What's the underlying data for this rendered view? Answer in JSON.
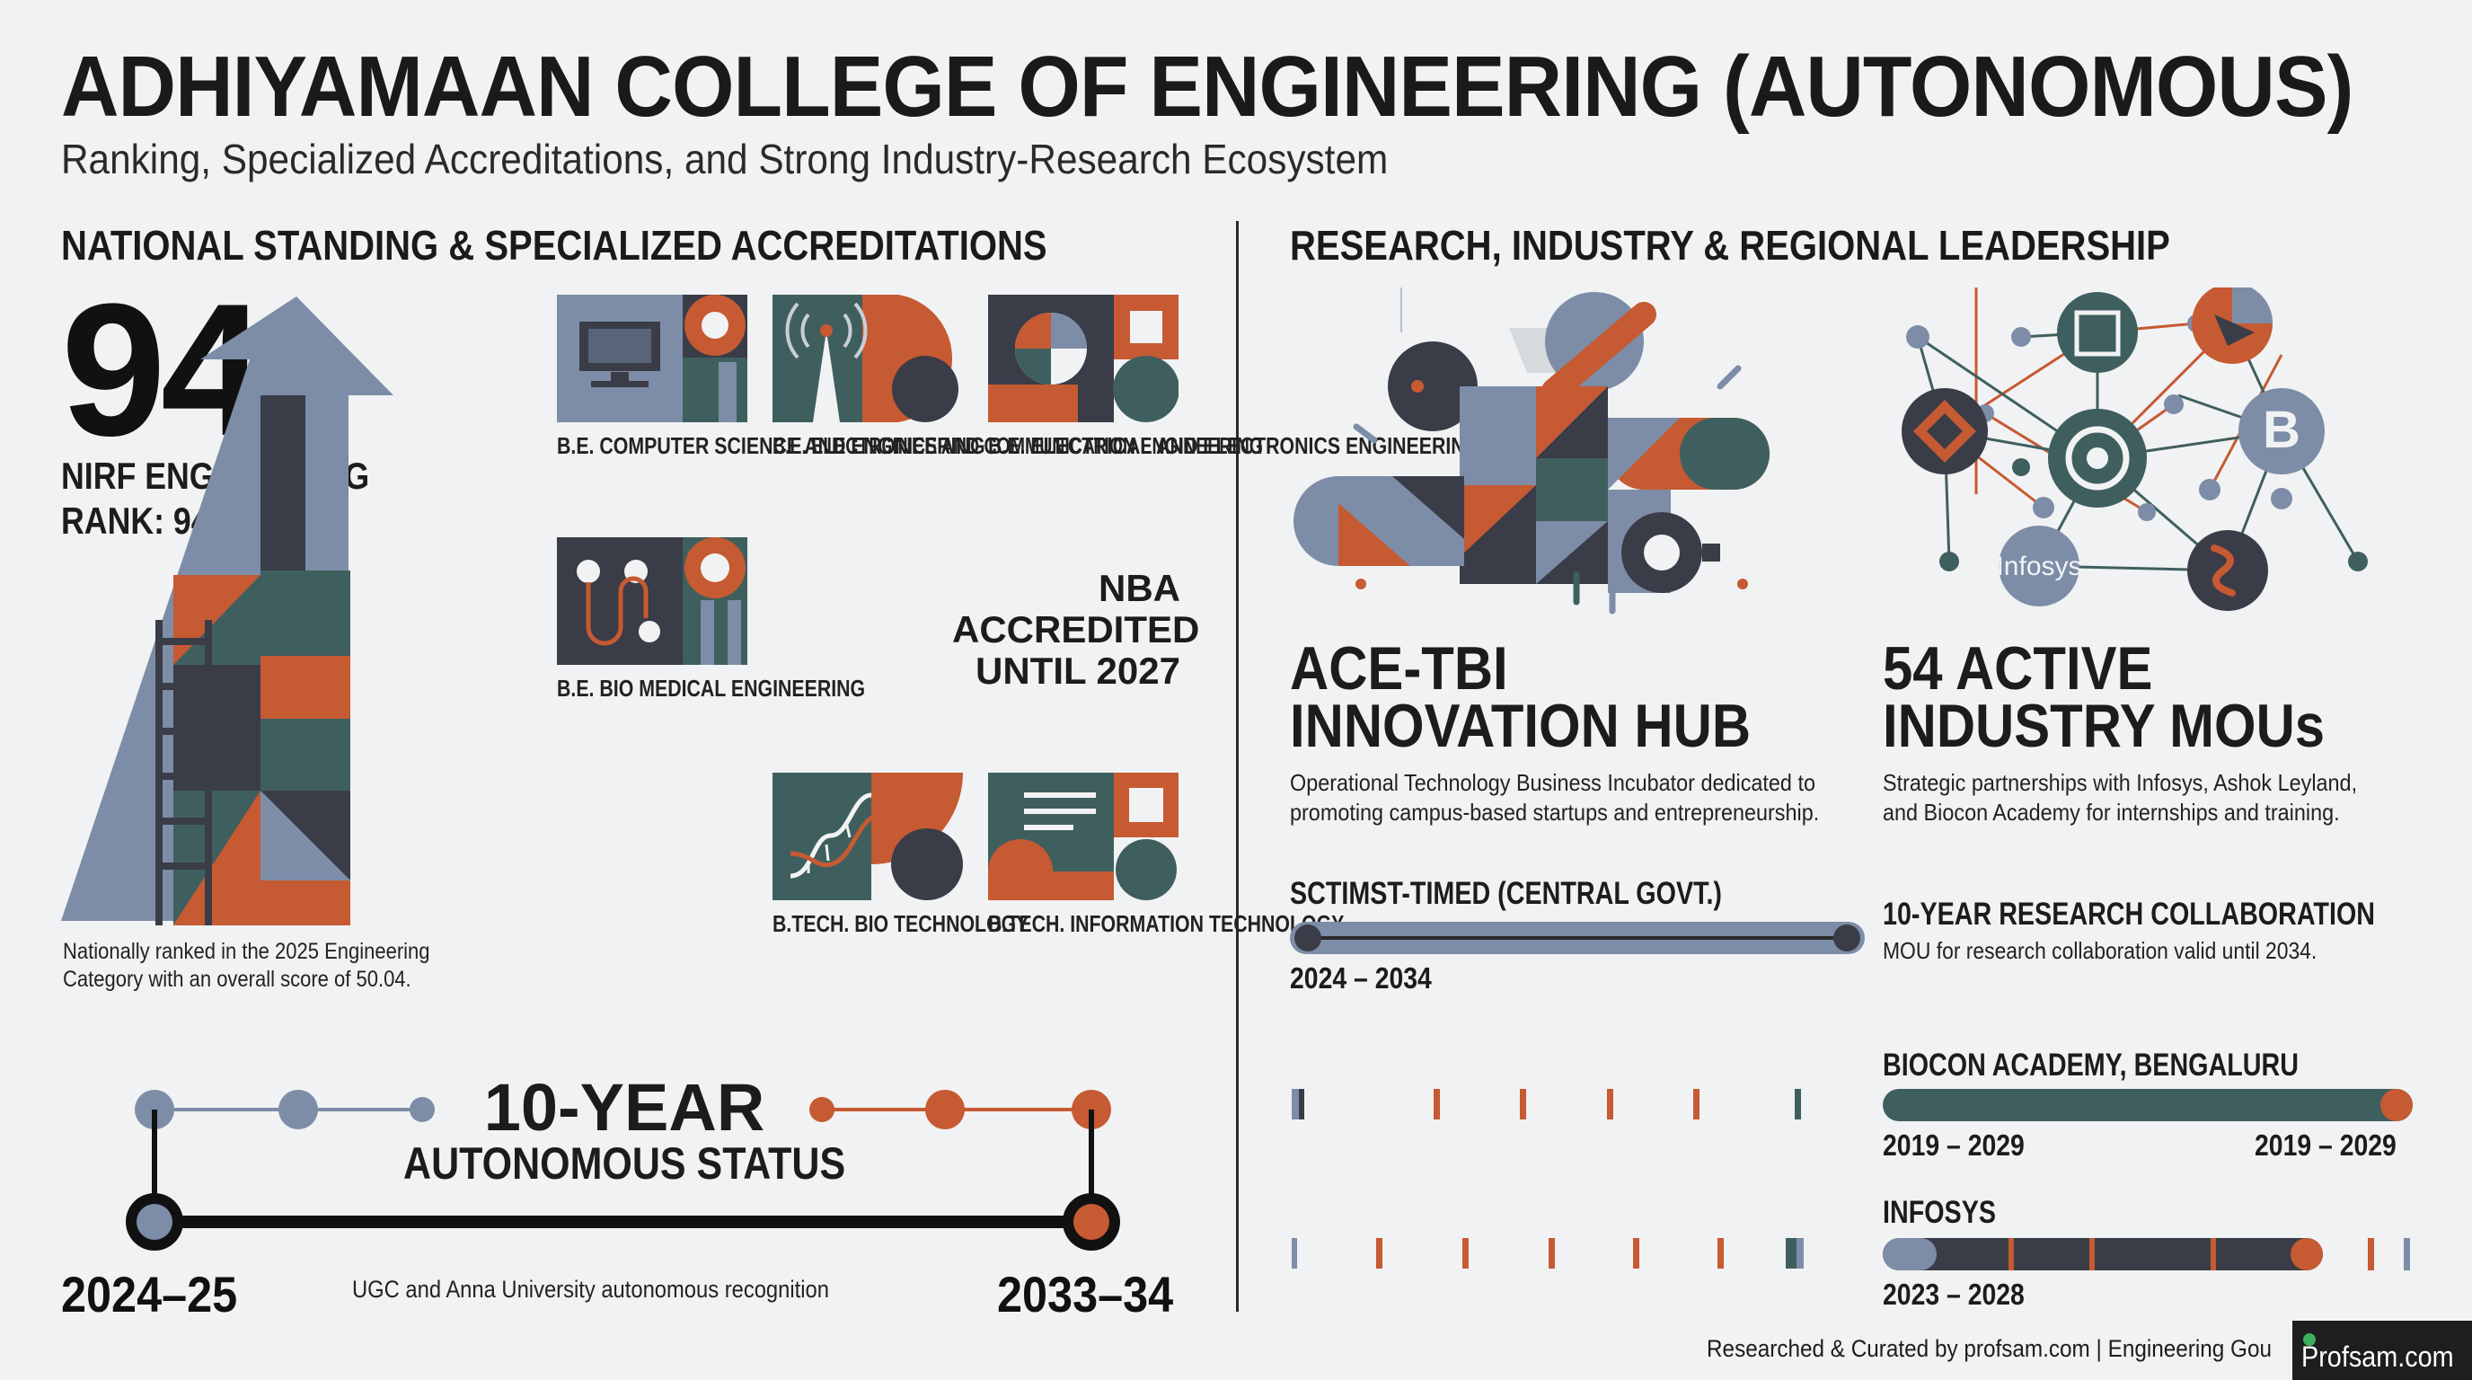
{
  "header": {
    "title": "ADHIYAMAAN COLLEGE OF ENGINEERING (AUTONOMOUS)",
    "subtitle": "Ranking, Specialized Accreditations, and Strong Industry-Research Ecosystem"
  },
  "left": {
    "heading": "NATIONAL STANDING & SPECIALIZED ACCREDITATIONS",
    "rank_number": "94",
    "rank_label_1": "NIRF ENGINEERING",
    "rank_label_2": "RANK: 94",
    "rank_note_1": "Nationally ranked in the 2025 Engineering",
    "rank_note_2": "Category with an overall score of 50.04.",
    "departments": [
      {
        "label": "B.E. COMPUTER\nSCIENCE AND\nENGINEERING",
        "icon": "computer-icon"
      },
      {
        "label": "B.E. ELECTRONICS\nAND COMMUNICATION\nENGINEERING",
        "icon": "antenna-icon"
      },
      {
        "label": "B.E. ELECTRICAL\nAND ELECTRONICS\nENGINEERING",
        "icon": "electrical-icon"
      },
      {
        "label": "B.E. BIO MEDICAL\nENGINEERING",
        "icon": "biomedical-icon"
      },
      {
        "label": "B.TECH.\nBIO TECHNOLOGY",
        "icon": "dna-icon"
      },
      {
        "label": "B.TECH.\nINFORMATION\nTECHNOLOGY",
        "icon": "document-icon"
      }
    ],
    "nba_1": "NBA",
    "nba_2": "ACCREDITED",
    "nba_3": "UNTIL 2027",
    "autonomy": {
      "headline": "10-YEAR",
      "subhead": "AUTONOMOUS STATUS",
      "start": "2024–25",
      "end": "2033–34",
      "note": "UGC and Anna University autonomous recognition"
    }
  },
  "right": {
    "heading": "RESEARCH, INDUSTRY & REGIONAL LEADERSHIP",
    "hub_title_1": "ACE-TBI",
    "hub_title_2": "INNOVATION HUB",
    "hub_desc_1": "Operational Technology Business Incubator dedicated to",
    "hub_desc_2": "promoting campus-based startups and entrepreneurship.",
    "mou_title_1": "54 ACTIVE",
    "mou_title_2": "INDUSTRY MOUs",
    "mou_desc_1": "Strategic partnerships with Infosys, Ashok Leyland,",
    "mou_desc_2": "and Biocon Academy for internships and training.",
    "network_logo_text": "Infosys",
    "network_logo_letter": "B",
    "sctimst": {
      "title": "SCTIMST-TIMED (CENTRAL GOVT.)",
      "years": "2024 – 2034"
    },
    "research": {
      "title": "10-YEAR RESEARCH COLLABORATION",
      "note": "MOU for research collaboration valid until 2034."
    },
    "biocon": {
      "title": "BIOCON ACADEMY, BENGALURU",
      "start": "2019 – 2029",
      "end": "2019 – 2029"
    },
    "infosys": {
      "title": "INFOSYS",
      "years": "2023 – 2028"
    }
  },
  "footer": {
    "credit": "Researched & Curated by profsam.com | Engineering Gou",
    "badge": "Profsam.com"
  },
  "colors": {
    "slate": "#7d8da8",
    "teal": "#3f5f5e",
    "orange": "#c65a32",
    "dark": "#3a3d47"
  }
}
